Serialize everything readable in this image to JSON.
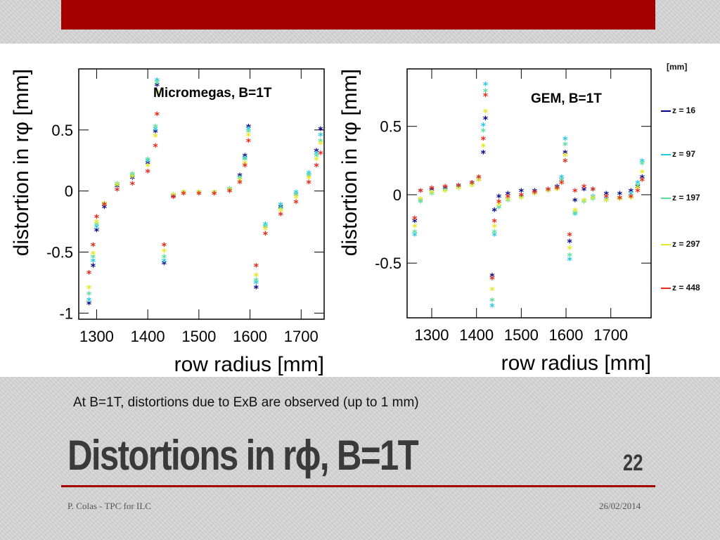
{
  "slide": {
    "caption": "At B=1T, distortions due to ExB are observed (up to 1 mm)",
    "title": "Distortions in rϕ, B=1T",
    "number": "22",
    "footer_left": "P. Colas - TPC for ILC",
    "footer_right": "26/02/2014",
    "accent_color": "#a50000"
  },
  "legend": {
    "unit": "[mm]",
    "items": [
      {
        "label": "z = 16",
        "color": "#00008b"
      },
      {
        "label": "z = 97",
        "color": "#22c8e8"
      },
      {
        "label": "z = 197",
        "color": "#55e09a"
      },
      {
        "label": "z = 297",
        "color": "#e8e820"
      },
      {
        "label": "z = 448",
        "color": "#e82818"
      }
    ]
  },
  "chart_data": [
    {
      "type": "scatter",
      "title": "Micromegas, B=1T",
      "xlabel": "row radius [mm]",
      "ylabel": "distortion in rφ [mm]",
      "xlim": [
        1265,
        1745
      ],
      "ylim": [
        -1.05,
        1.0
      ],
      "xticks": [
        1300,
        1400,
        1500,
        1600,
        1700
      ],
      "xtick_labels": [
        "1300",
        "1400",
        "1500",
        "1600",
        "1700"
      ],
      "yticks": [
        0.5,
        0,
        -0.5,
        -1
      ],
      "ytick_labels": [
        "0.5",
        "0",
        "-0.5",
        "-1"
      ],
      "marker": "star",
      "series": [
        {
          "name": "z = 16",
          "color": "#00008b",
          "x": [
            1285,
            1293,
            1300,
            1315,
            1340,
            1370,
            1400,
            1415,
            1418,
            1432,
            1450,
            1470,
            1500,
            1530,
            1560,
            1580,
            1590,
            1597,
            1612,
            1630,
            1660,
            1690,
            1715,
            1730,
            1738
          ],
          "y": [
            -0.93,
            -0.62,
            -0.33,
            -0.14,
            0.03,
            0.1,
            0.22,
            0.48,
            0.86,
            -0.6,
            -0.05,
            -0.02,
            -0.02,
            -0.02,
            0.0,
            0.12,
            0.28,
            0.52,
            -0.8,
            -0.3,
            -0.14,
            -0.04,
            0.12,
            0.32,
            0.5
          ]
        },
        {
          "name": "z = 97",
          "color": "#22c8e8",
          "x": [
            1285,
            1293,
            1300,
            1315,
            1340,
            1370,
            1400,
            1415,
            1418,
            1432,
            1450,
            1470,
            1500,
            1530,
            1560,
            1580,
            1590,
            1597,
            1612,
            1630,
            1660,
            1690,
            1715,
            1730,
            1738
          ],
          "y": [
            -0.9,
            -0.58,
            -0.3,
            -0.12,
            0.04,
            0.12,
            0.24,
            0.5,
            0.9,
            -0.58,
            -0.04,
            -0.02,
            -0.02,
            -0.02,
            0.0,
            0.1,
            0.26,
            0.5,
            -0.76,
            -0.28,
            -0.12,
            -0.02,
            0.14,
            0.3,
            0.45
          ]
        },
        {
          "name": "z = 197",
          "color": "#55e09a",
          "x": [
            1285,
            1293,
            1300,
            1315,
            1340,
            1370,
            1400,
            1415,
            1418,
            1432,
            1450,
            1470,
            1500,
            1530,
            1560,
            1580,
            1590,
            1597,
            1612,
            1630,
            1660,
            1690,
            1715,
            1730,
            1738
          ],
          "y": [
            -0.85,
            -0.55,
            -0.28,
            -0.11,
            0.05,
            0.13,
            0.25,
            0.52,
            0.88,
            -0.55,
            -0.04,
            -0.02,
            -0.02,
            -0.02,
            0.01,
            0.1,
            0.25,
            0.48,
            -0.74,
            -0.3,
            -0.15,
            -0.04,
            0.12,
            0.28,
            0.4
          ]
        },
        {
          "name": "z = 297",
          "color": "#e8e820",
          "x": [
            1285,
            1293,
            1300,
            1315,
            1340,
            1370,
            1400,
            1415,
            1418,
            1432,
            1450,
            1470,
            1500,
            1530,
            1560,
            1580,
            1590,
            1597,
            1612,
            1630,
            1660,
            1690,
            1715,
            1730,
            1738
          ],
          "y": [
            -0.8,
            -0.52,
            -0.26,
            -0.11,
            0.04,
            0.11,
            0.2,
            0.44,
            0.8,
            -0.5,
            -0.04,
            -0.02,
            -0.02,
            -0.02,
            0.0,
            0.08,
            0.22,
            0.45,
            -0.7,
            -0.32,
            -0.17,
            -0.06,
            0.1,
            0.25,
            0.38
          ]
        },
        {
          "name": "z = 448",
          "color": "#e82818",
          "x": [
            1285,
            1293,
            1300,
            1315,
            1340,
            1370,
            1400,
            1415,
            1418,
            1432,
            1450,
            1470,
            1500,
            1530,
            1560,
            1580,
            1590,
            1597,
            1612,
            1630,
            1660,
            1690,
            1715,
            1730,
            1738
          ],
          "y": [
            -0.68,
            -0.45,
            -0.22,
            -0.12,
            0.0,
            0.05,
            0.15,
            0.36,
            0.62,
            -0.45,
            -0.06,
            -0.03,
            -0.03,
            -0.03,
            -0.01,
            0.06,
            0.2,
            0.4,
            -0.62,
            -0.36,
            -0.2,
            -0.1,
            0.06,
            0.2,
            0.3
          ]
        }
      ]
    },
    {
      "type": "scatter",
      "title": "GEM, B=1T",
      "xlabel": "row radius [mm]",
      "ylabel": "distortion in rφ [mm]",
      "xlim": [
        1245,
        1790
      ],
      "ylim": [
        -0.9,
        0.92
      ],
      "xticks": [
        1300,
        1400,
        1500,
        1600,
        1700
      ],
      "xtick_labels": [
        "1300",
        "1400",
        "1500",
        "1600",
        "1700"
      ],
      "yticks": [
        0.5,
        0,
        -0.5
      ],
      "ytick_labels": [
        "0.5",
        "0",
        "-0.5"
      ],
      "marker": "star",
      "series": [
        {
          "name": "z = 16",
          "color": "#00008b",
          "x": [
            1262,
            1275,
            1300,
            1330,
            1360,
            1390,
            1405,
            1415,
            1420,
            1435,
            1440,
            1450,
            1470,
            1500,
            1530,
            1560,
            1580,
            1590,
            1598,
            1608,
            1620,
            1640,
            1660,
            1690,
            1720,
            1745,
            1760,
            1770
          ],
          "y": [
            -0.2,
            0.02,
            0.03,
            0.04,
            0.06,
            0.08,
            0.1,
            0.3,
            0.55,
            -0.6,
            -0.12,
            -0.02,
            0.0,
            0.02,
            0.02,
            0.03,
            0.05,
            0.1,
            0.3,
            -0.35,
            -0.05,
            0.03,
            0.03,
            0.0,
            0.0,
            0.02,
            0.05,
            0.12
          ]
        },
        {
          "name": "z = 97",
          "color": "#22c8e8",
          "x": [
            1262,
            1275,
            1300,
            1330,
            1360,
            1390,
            1405,
            1415,
            1420,
            1435,
            1440,
            1450,
            1470,
            1500,
            1530,
            1560,
            1580,
            1590,
            1598,
            1608,
            1620,
            1640,
            1660,
            1690,
            1720,
            1745,
            1760,
            1770
          ],
          "y": [
            -0.3,
            -0.05,
            0.01,
            0.03,
            0.05,
            0.08,
            0.12,
            0.5,
            0.8,
            -0.82,
            -0.3,
            -0.1,
            -0.04,
            -0.02,
            0.0,
            0.02,
            0.04,
            0.12,
            0.4,
            -0.48,
            -0.15,
            -0.05,
            -0.02,
            -0.04,
            -0.03,
            0.0,
            0.08,
            0.24
          ]
        },
        {
          "name": "z = 197",
          "color": "#55e09a",
          "x": [
            1262,
            1275,
            1300,
            1330,
            1360,
            1390,
            1405,
            1415,
            1420,
            1435,
            1440,
            1450,
            1470,
            1500,
            1530,
            1560,
            1580,
            1590,
            1598,
            1608,
            1620,
            1640,
            1660,
            1690,
            1720,
            1745,
            1760,
            1770
          ],
          "y": [
            -0.28,
            -0.06,
            0.0,
            0.02,
            0.04,
            0.07,
            0.12,
            0.46,
            0.75,
            -0.78,
            -0.28,
            -0.1,
            -0.05,
            -0.03,
            0.0,
            0.02,
            0.04,
            0.1,
            0.36,
            -0.45,
            -0.14,
            -0.06,
            -0.04,
            -0.05,
            -0.04,
            -0.02,
            0.06,
            0.22
          ]
        },
        {
          "name": "z = 297",
          "color": "#e8e820",
          "x": [
            1262,
            1275,
            1300,
            1330,
            1360,
            1390,
            1405,
            1415,
            1420,
            1435,
            1440,
            1450,
            1470,
            1500,
            1530,
            1560,
            1580,
            1590,
            1598,
            1608,
            1620,
            1640,
            1660,
            1690,
            1720,
            1745,
            1760,
            1770
          ],
          "y": [
            -0.24,
            -0.04,
            0.01,
            0.02,
            0.04,
            0.06,
            0.1,
            0.35,
            0.6,
            -0.7,
            -0.24,
            -0.08,
            -0.04,
            -0.03,
            0.0,
            0.02,
            0.03,
            0.08,
            0.28,
            -0.4,
            -0.12,
            -0.05,
            -0.03,
            -0.05,
            -0.04,
            -0.03,
            0.04,
            0.16
          ]
        },
        {
          "name": "z = 448",
          "color": "#e82818",
          "x": [
            1262,
            1275,
            1300,
            1330,
            1360,
            1390,
            1405,
            1415,
            1420,
            1435,
            1440,
            1450,
            1470,
            1500,
            1530,
            1560,
            1580,
            1590,
            1598,
            1608,
            1620,
            1640,
            1660,
            1690,
            1720,
            1745,
            1760,
            1770
          ],
          "y": [
            -0.18,
            0.02,
            0.04,
            0.05,
            0.06,
            0.08,
            0.12,
            0.4,
            0.72,
            -0.62,
            -0.2,
            -0.06,
            -0.02,
            -0.01,
            0.01,
            0.03,
            0.04,
            0.08,
            0.24,
            -0.3,
            0.02,
            0.05,
            0.03,
            -0.02,
            -0.03,
            -0.02,
            0.02,
            0.1
          ]
        }
      ]
    }
  ]
}
